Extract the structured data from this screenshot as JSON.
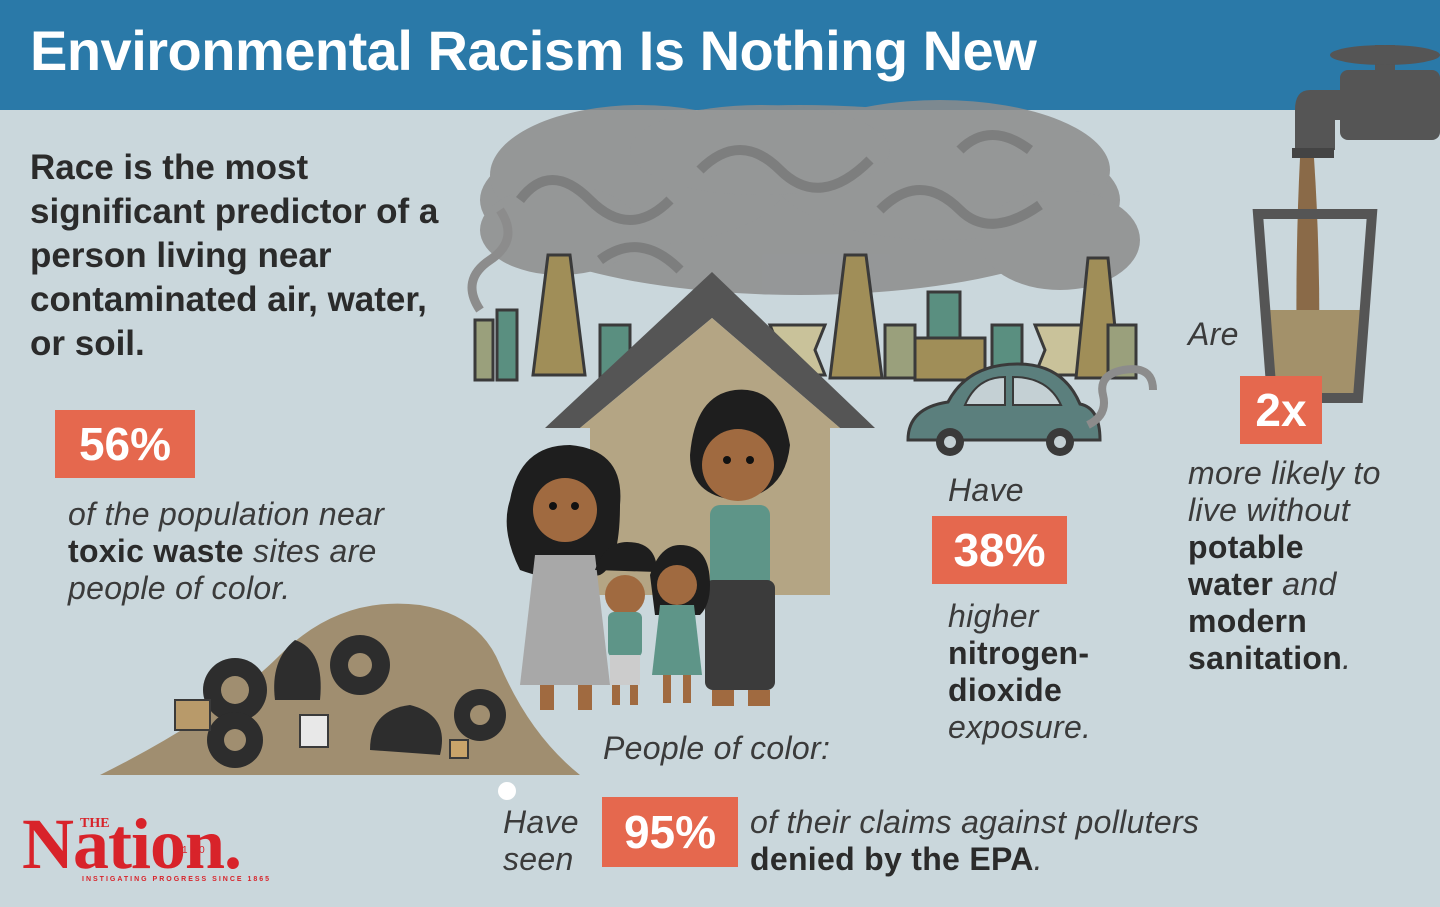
{
  "title": "Environmental Racism Is Nothing New",
  "lead": "Race is the most significant predictor of a person living near contaminated air, water, or soil.",
  "stat_56": {
    "value": "56%",
    "line1": "of the population near",
    "bold": "toxic waste",
    "line2_rest": " sites are",
    "line3": "people of color."
  },
  "stat_38": {
    "pre": "Have",
    "value": "38%",
    "line1": "higher",
    "bold1": "nitrogen-",
    "bold2": "dioxide",
    "line2": "exposure."
  },
  "stat_2x": {
    "pre": "Are",
    "value": "2x",
    "line1": "more likely to",
    "line2": "live without",
    "bold1": "potable",
    "bold2": "water",
    "mid": " and",
    "bold3": "modern",
    "bold4": "sanitation",
    "end": "."
  },
  "stat_95": {
    "intro": "People of color:",
    "pre1": "Have",
    "pre2": "seen",
    "value": "95%",
    "line1": "of their claims against polluters",
    "bold": "denied by the EPA",
    "end": "."
  },
  "logo": {
    "the": "THE",
    "name": "Nation.",
    "anniversary": "150",
    "tagline": "INSTIGATING PROGRESS SINCE 1865"
  },
  "colors": {
    "header": "#2a79a8",
    "background": "#cad7dc",
    "badge": "#e5684e",
    "logo": "#d8232a"
  }
}
